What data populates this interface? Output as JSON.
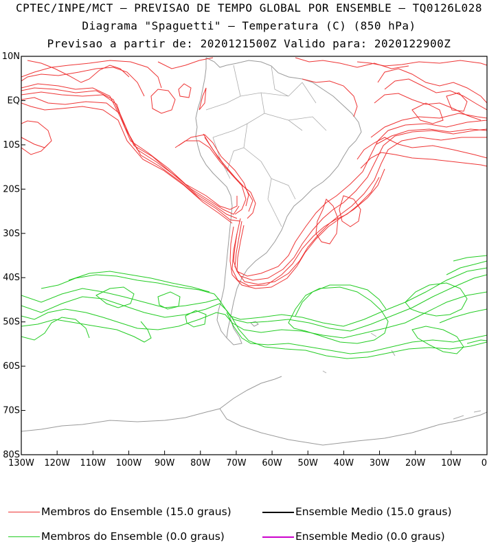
{
  "titles": {
    "line1": "CPTEC/INPE/MCT — PREVISAO DE TEMPO GLOBAL POR ENSEMBLE — TQ0126L028",
    "line2": "Diagrama \"Spaguetti\" — Temperatura (C) (850 hPa)",
    "line3": "Previsao a partir de: 2020121500Z  Valido para: 2020122900Z"
  },
  "map": {
    "lon_range": [
      -130,
      0
    ],
    "lat_range": [
      -80,
      10
    ],
    "y_ticks": [
      "10N",
      "EQ",
      "10S",
      "20S",
      "30S",
      "40S",
      "50S",
      "60S",
      "70S",
      "80S"
    ],
    "x_ticks": [
      "130W",
      "120W",
      "110W",
      "100W",
      "90W",
      "80W",
      "70W",
      "60W",
      "50W",
      "40W",
      "30W",
      "20W",
      "10W",
      "0"
    ]
  },
  "colors": {
    "members_15": "#ee3333",
    "members_0": "#22cc22",
    "mean_15": "#000000",
    "mean_0": "#cc00cc",
    "coast": "#999999"
  },
  "legend": {
    "members_15": "Membros do Ensemble (15.0 graus)",
    "mean_15": "Ensemble Medio (15.0 graus)",
    "members_0": "Membros do Ensemble (0.0 graus)",
    "mean_0": "Ensemble Medio (0.0 graus)"
  }
}
